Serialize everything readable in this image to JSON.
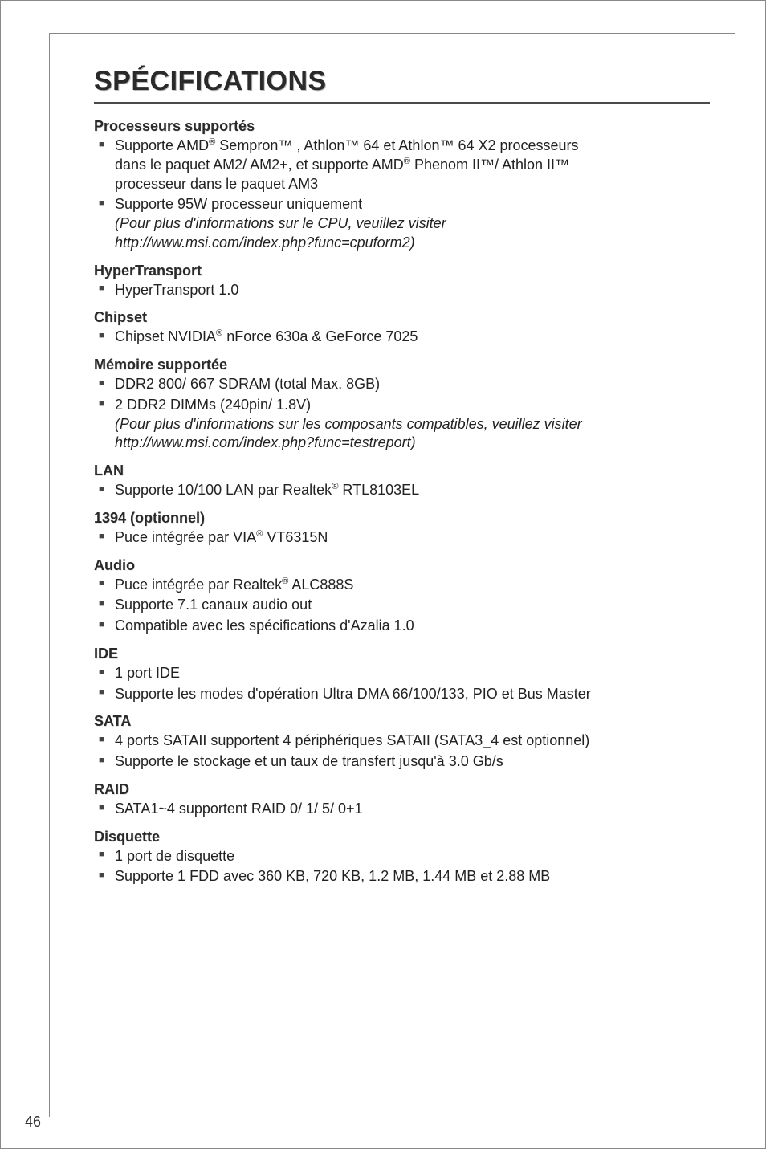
{
  "title": "SPÉCIFICATIONS",
  "pageNumber": "46",
  "sections": [
    {
      "heading": "Processeurs supportés",
      "items": [
        {
          "lines": [
            "Supporte AMD<sup>®</sup> Sempron™ , Athlon™ 64 et Athlon™ 64 X2 processeurs",
            "dans le paquet AM2/ AM2+, et supporte AMD<sup>®</sup> Phenom II™/ Athlon II™",
            "processeur dans le paquet AM3"
          ]
        },
        {
          "lines": [
            "Supporte 95W processeur uniquement",
            "<span class='italic'>(Pour plus d'informations sur le CPU, veuillez visiter</span>",
            "<span class='italic'>http://www.msi.com/index.php?func=cpuform2)</span>"
          ]
        }
      ]
    },
    {
      "heading": "HyperTransport",
      "items": [
        {
          "lines": [
            "HyperTransport 1.0"
          ]
        }
      ]
    },
    {
      "heading": "Chipset",
      "items": [
        {
          "lines": [
            "Chipset NVIDIA<sup>®</sup> nForce 630a & GeForce 7025"
          ]
        }
      ]
    },
    {
      "heading": "Mémoire supportée",
      "items": [
        {
          "lines": [
            "DDR2 800/ 667 SDRAM (total Max. 8GB)"
          ]
        },
        {
          "lines": [
            "2 DDR2 DIMMs (240pin/ 1.8V)",
            "<span class='italic'>(Pour plus d'informations sur les composants compatibles, veuillez visiter</span>",
            "<span class='italic'>http://www.msi.com/index.php?func=testreport)</span>"
          ]
        }
      ]
    },
    {
      "heading": "LAN",
      "items": [
        {
          "lines": [
            "Supporte 10/100 LAN par Realtek<sup>®</sup> RTL8103EL"
          ]
        }
      ]
    },
    {
      "heading": "1394 (optionnel)",
      "items": [
        {
          "lines": [
            "Puce intégrée par VIA<sup>®</sup> VT6315N"
          ]
        }
      ]
    },
    {
      "heading": "Audio",
      "items": [
        {
          "lines": [
            "Puce intégrée par Realtek<sup>®</sup> ALC888S"
          ]
        },
        {
          "lines": [
            "Supporte 7.1 canaux audio out"
          ]
        },
        {
          "lines": [
            "Compatible avec les spécifications d'Azalia 1.0"
          ]
        }
      ]
    },
    {
      "heading": "IDE",
      "items": [
        {
          "lines": [
            "1 port IDE"
          ]
        },
        {
          "lines": [
            "Supporte les modes d'opération Ultra DMA 66/100/133, PIO et Bus Master"
          ]
        }
      ]
    },
    {
      "heading": "SATA",
      "items": [
        {
          "lines": [
            "4 ports SATAII supportent 4 périphériques SATAII (SATA3_4 est optionnel)"
          ]
        },
        {
          "lines": [
            "Supporte le stockage et un taux de transfert jusqu'à 3.0 Gb/s"
          ]
        }
      ]
    },
    {
      "heading": "RAID",
      "items": [
        {
          "lines": [
            "SATA1~4 supportent RAID 0/ 1/ 5/ 0+1"
          ]
        }
      ]
    },
    {
      "heading": "Disquette",
      "items": [
        {
          "lines": [
            "1 port de disquette"
          ]
        },
        {
          "lines": [
            "Supporte 1 FDD avec 360 KB, 720 KB, 1.2 MB, 1.44 MB et 2.88 MB"
          ]
        }
      ]
    }
  ]
}
